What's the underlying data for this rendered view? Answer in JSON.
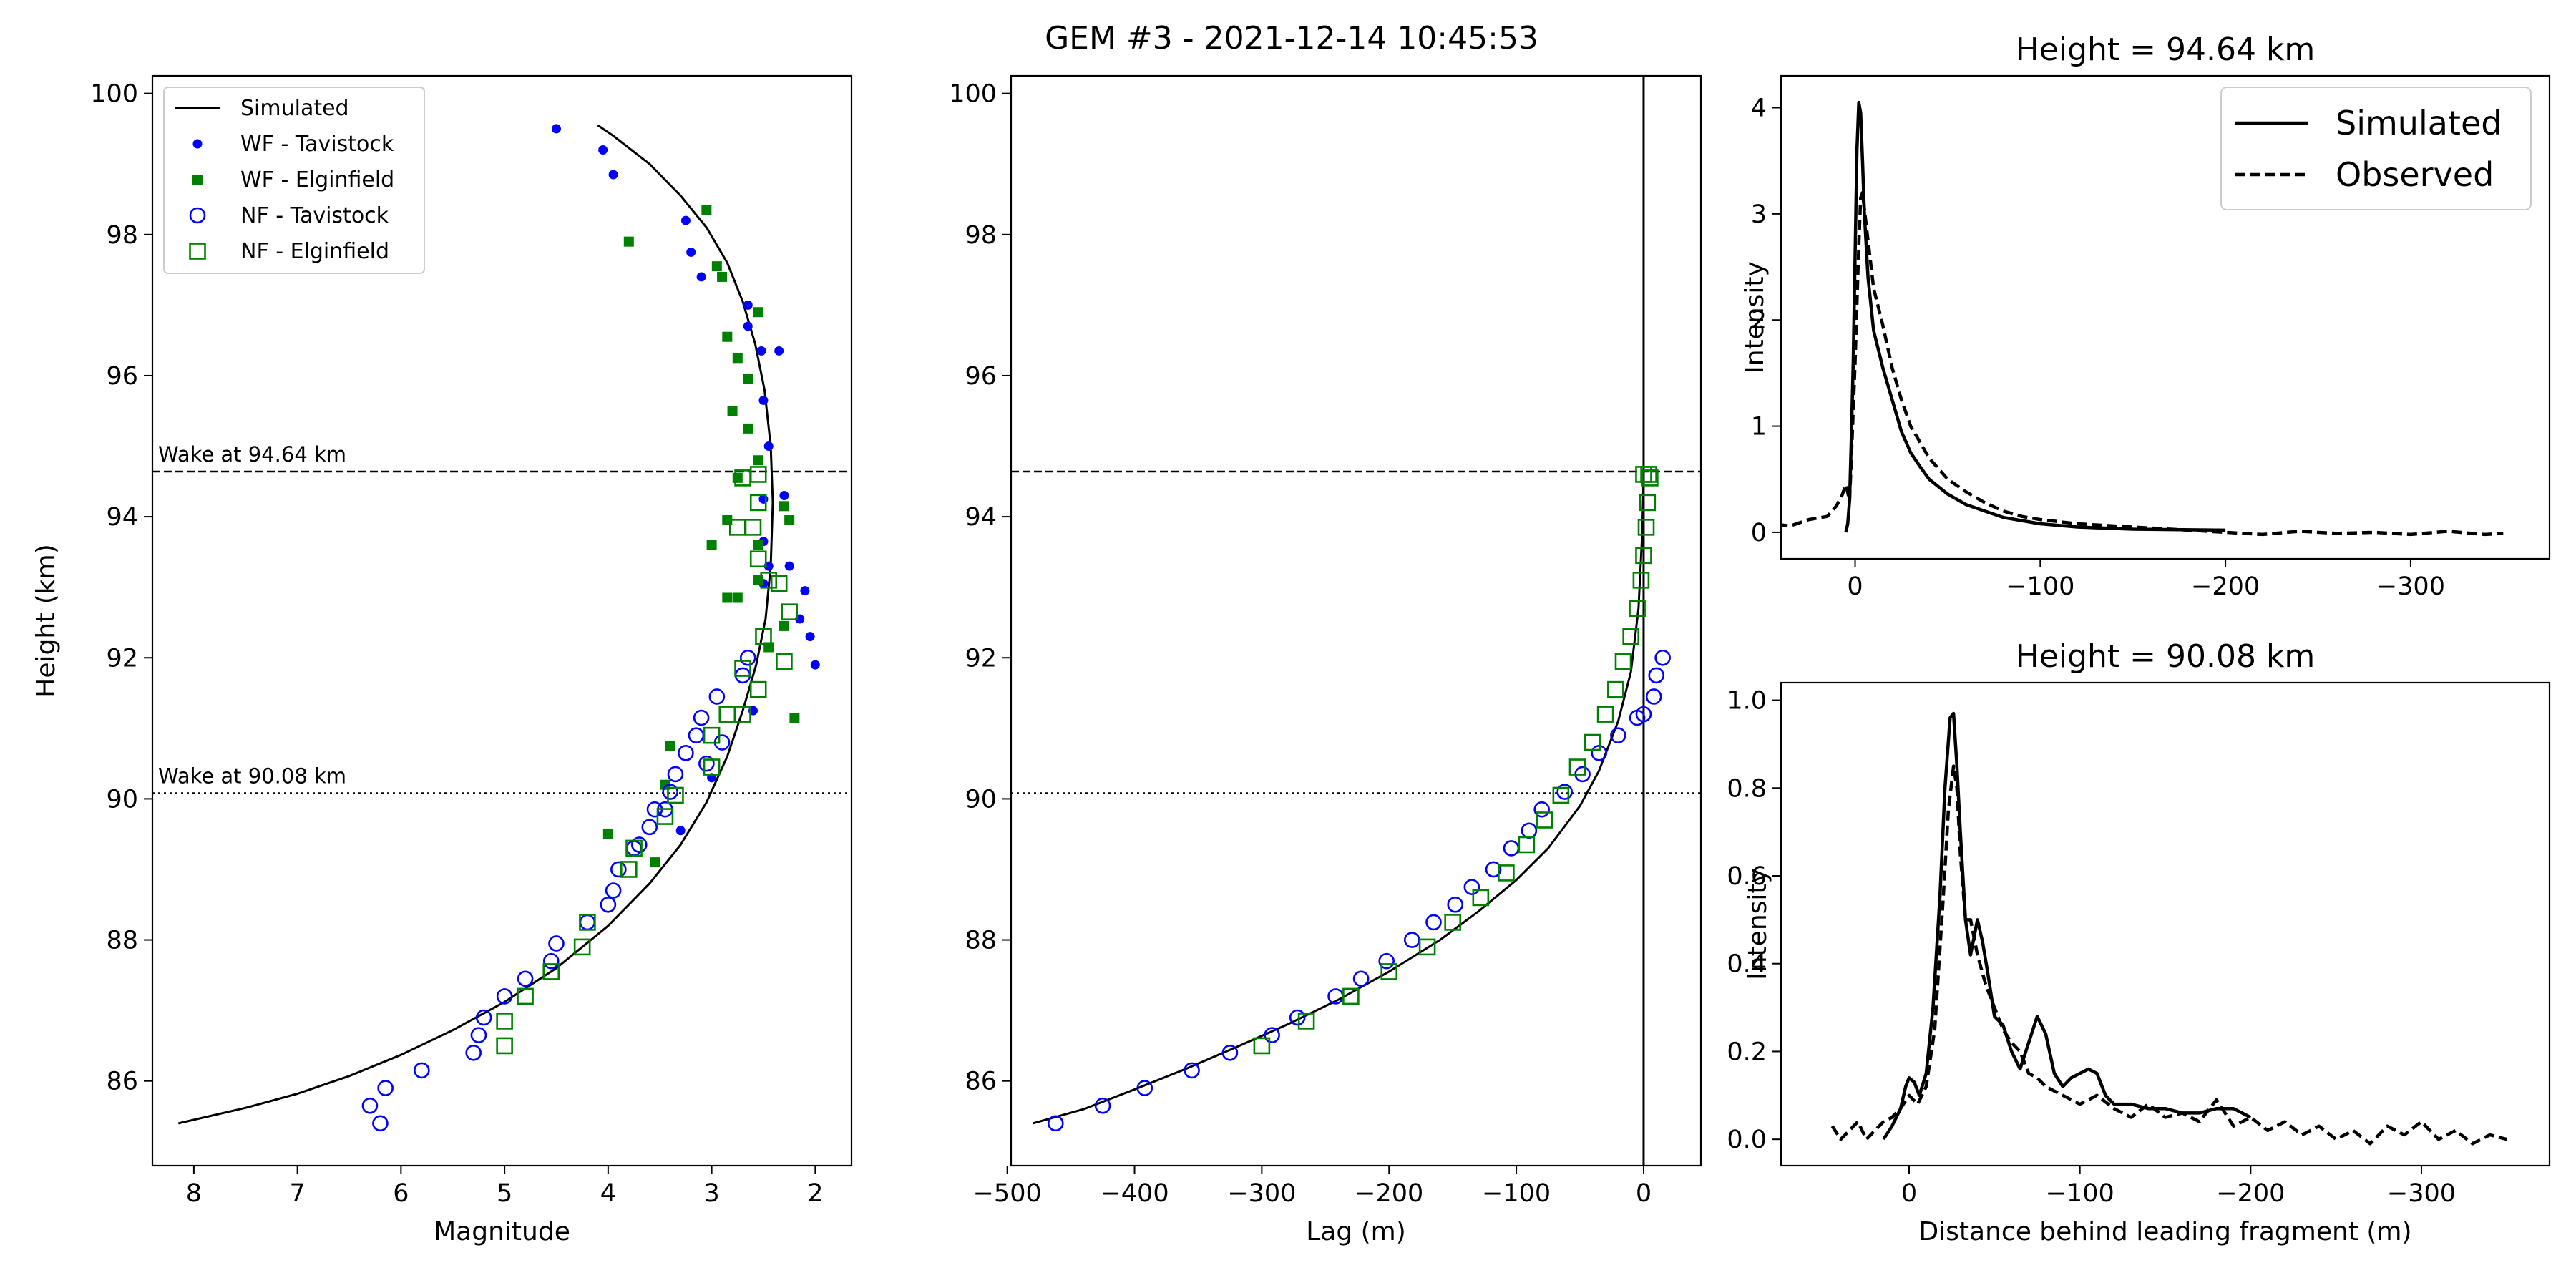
{
  "colors": {
    "blue": "#0000ff",
    "green": "#008000",
    "black": "#000000"
  },
  "figure_title": "GEM #3 - 2021-12-14 10:45:53",
  "chart_data": [
    {
      "id": "magnitude",
      "type": "scatter",
      "title": "",
      "xlabel": "Magnitude",
      "ylabel": "Height (km)",
      "xlim": [
        8.4,
        1.65
      ],
      "ylim": [
        84.8,
        100.25
      ],
      "x_inverted": true,
      "xticks": [
        8,
        7,
        6,
        5,
        4,
        3,
        2
      ],
      "yticks": [
        86,
        88,
        90,
        92,
        94,
        96,
        98,
        100
      ],
      "grid": false,
      "legend_position": "upper-left",
      "hlines": [
        {
          "y": 94.64,
          "style": "dashed",
          "label": "Wake at 94.64 km"
        },
        {
          "y": 90.08,
          "style": "dotted",
          "label": "Wake at 90.08 km"
        }
      ],
      "series": [
        {
          "name": "Simulated",
          "kind": "line",
          "color": "#000000",
          "x": [
            8.15,
            7.5,
            7.0,
            6.5,
            6.0,
            5.5,
            5.0,
            4.5,
            4.0,
            3.6,
            3.3,
            3.05,
            2.85,
            2.7,
            2.57,
            2.48,
            2.43,
            2.41,
            2.43,
            2.49,
            2.58,
            2.7,
            2.85,
            3.05,
            3.3,
            3.6,
            3.95,
            4.1
          ],
          "y": [
            85.4,
            85.62,
            85.82,
            86.07,
            86.37,
            86.72,
            87.12,
            87.6,
            88.2,
            88.8,
            89.35,
            89.95,
            90.6,
            91.25,
            91.9,
            92.55,
            93.3,
            94.2,
            95.0,
            95.8,
            96.45,
            97.05,
            97.6,
            98.1,
            98.55,
            99.0,
            99.4,
            99.55
          ]
        },
        {
          "name": "WF - Tavistock",
          "kind": "dot",
          "color": "#0000ff",
          "x": [
            4.5,
            4.05,
            3.95,
            3.25,
            3.2,
            3.1,
            2.65,
            2.65,
            2.52,
            2.35,
            2.5,
            2.45,
            2.3,
            2.5,
            2.25,
            2.25,
            2.5,
            2.5,
            2.45,
            2.1,
            2.15,
            2.05,
            2.0,
            2.6,
            3.0,
            3.3
          ],
          "y": [
            99.5,
            99.2,
            98.85,
            98.2,
            97.75,
            97.4,
            97.0,
            96.7,
            96.35,
            96.35,
            95.65,
            95.0,
            94.3,
            94.25,
            93.95,
            93.3,
            93.65,
            93.05,
            93.3,
            92.95,
            92.55,
            92.3,
            91.9,
            91.25,
            90.3,
            89.55
          ]
        },
        {
          "name": "WF - Elginfield",
          "kind": "square",
          "color": "#008000",
          "x": [
            3.8,
            3.05,
            2.95,
            2.9,
            2.55,
            2.85,
            2.75,
            2.65,
            2.8,
            2.65,
            2.55,
            2.75,
            2.85,
            2.3,
            2.25,
            2.55,
            2.55,
            2.3,
            2.75,
            2.45,
            2.2,
            3.0,
            2.85,
            3.4,
            3.45,
            4.0,
            3.55
          ],
          "y": [
            97.9,
            98.35,
            97.55,
            97.4,
            96.9,
            96.55,
            96.25,
            95.95,
            95.5,
            95.25,
            94.8,
            94.55,
            93.95,
            94.15,
            93.95,
            93.6,
            93.1,
            92.45,
            92.85,
            92.15,
            91.15,
            93.6,
            92.85,
            90.75,
            90.2,
            89.5,
            89.1
          ]
        },
        {
          "name": "NF - Tavistock",
          "kind": "circle",
          "color": "#0000ff",
          "x": [
            6.2,
            6.3,
            6.15,
            5.8,
            5.3,
            5.25,
            5.2,
            5.0,
            4.8,
            4.55,
            4.5,
            4.2,
            4.0,
            3.95,
            3.9,
            3.75,
            3.7,
            3.6,
            3.55,
            3.45,
            3.4,
            3.35,
            3.25,
            3.15,
            3.1,
            3.05,
            2.95,
            2.9,
            2.7,
            2.65
          ],
          "y": [
            85.4,
            85.65,
            85.9,
            86.15,
            86.4,
            86.65,
            86.9,
            87.2,
            87.45,
            87.7,
            87.95,
            88.25,
            88.5,
            88.7,
            89.0,
            89.3,
            89.35,
            89.6,
            89.85,
            89.85,
            90.1,
            90.35,
            90.65,
            90.9,
            91.15,
            90.5,
            91.45,
            90.8,
            91.75,
            92.0
          ]
        },
        {
          "name": "NF - Elginfield",
          "kind": "open-square",
          "color": "#008000",
          "x": [
            5.0,
            5.0,
            4.8,
            4.55,
            4.25,
            4.2,
            3.8,
            3.75,
            3.45,
            3.35,
            3.0,
            3.0,
            2.85,
            2.7,
            2.7,
            2.55,
            2.5,
            2.3,
            2.25,
            2.35,
            2.45,
            2.55,
            2.75,
            2.6,
            2.55,
            2.7,
            2.55
          ],
          "y": [
            86.5,
            86.85,
            87.2,
            87.55,
            87.9,
            88.25,
            89.0,
            89.3,
            89.75,
            90.05,
            90.45,
            90.9,
            91.2,
            91.2,
            91.85,
            91.55,
            92.3,
            91.95,
            92.65,
            93.05,
            93.1,
            93.4,
            93.85,
            93.85,
            94.2,
            94.55,
            94.6
          ]
        }
      ]
    },
    {
      "id": "lag",
      "type": "scatter",
      "title": "",
      "xlabel": "Lag (m)",
      "ylabel": "",
      "xlim": [
        -497,
        45
      ],
      "ylim": [
        84.8,
        100.25
      ],
      "xticks": [
        -500,
        -400,
        -300,
        -200,
        -100,
        0
      ],
      "xticklabels": [
        "−500",
        "−400",
        "−300",
        "−200",
        "−100",
        "0"
      ],
      "yticks": [
        86,
        88,
        90,
        92,
        94,
        96,
        98,
        100
      ],
      "grid": false,
      "vline": 0,
      "hlines": [
        {
          "y": 94.64,
          "style": "dashed"
        },
        {
          "y": 90.08,
          "style": "dotted"
        }
      ],
      "series": [
        {
          "name": "Simulated",
          "kind": "line",
          "color": "#000000",
          "x": [
            -480,
            -440,
            -400,
            -360,
            -320,
            -280,
            -240,
            -200,
            -160,
            -130,
            -100,
            -75,
            -50,
            -35,
            -20,
            -10,
            -4,
            -1,
            0
          ],
          "y": [
            85.4,
            85.6,
            85.88,
            86.17,
            86.48,
            86.8,
            87.15,
            87.55,
            88.0,
            88.4,
            88.85,
            89.3,
            89.9,
            90.4,
            91.1,
            91.8,
            92.7,
            93.8,
            94.6
          ]
        },
        {
          "name": "NF - Tavistock",
          "kind": "circle",
          "color": "#0000ff",
          "x": [
            -462,
            -425,
            -392,
            -355,
            -325,
            -292,
            -272,
            -242,
            -222,
            -202,
            -182,
            -165,
            -148,
            -135,
            -118,
            -104,
            -90,
            -80,
            -62,
            -48,
            -35,
            -20,
            -5,
            15,
            10,
            8,
            0
          ],
          "y": [
            85.4,
            85.65,
            85.9,
            86.15,
            86.4,
            86.65,
            86.9,
            87.2,
            87.45,
            87.7,
            88.0,
            88.25,
            88.5,
            88.75,
            89.0,
            89.3,
            89.55,
            89.85,
            90.1,
            90.35,
            90.65,
            90.9,
            91.15,
            92.0,
            91.75,
            91.45,
            91.2
          ]
        },
        {
          "name": "NF - Elginfield",
          "kind": "open-square",
          "color": "#008000",
          "x": [
            -300,
            -265,
            -230,
            -200,
            -170,
            -150,
            -128,
            -108,
            -92,
            -78,
            -65,
            -52,
            -40,
            -30,
            -22,
            -16,
            -10,
            -5,
            -2,
            0,
            2,
            3,
            5,
            4,
            0
          ],
          "y": [
            86.5,
            86.85,
            87.2,
            87.55,
            87.9,
            88.25,
            88.6,
            88.95,
            89.35,
            89.7,
            90.05,
            90.45,
            90.8,
            91.2,
            91.55,
            91.95,
            92.3,
            92.7,
            93.1,
            93.45,
            93.85,
            94.2,
            94.55,
            94.6,
            94.6
          ]
        }
      ]
    },
    {
      "id": "profile-top",
      "type": "line",
      "title": "Height = 94.64 km",
      "xlabel": "",
      "ylabel": "Intensity",
      "xlim": [
        40,
        -375
      ],
      "ylim": [
        -0.25,
        4.3
      ],
      "x_inverted": true,
      "xticks": [
        0,
        -100,
        -200,
        -300
      ],
      "xticklabels": [
        "0",
        "−100",
        "−200",
        "−300"
      ],
      "yticks": [
        0,
        1,
        2,
        3,
        4
      ],
      "legend_position": "upper-right",
      "series": [
        {
          "name": "Simulated",
          "style": "solid",
          "color": "#000000",
          "x": [
            5,
            4,
            3,
            2,
            1,
            0,
            -1,
            -2,
            -3,
            -4,
            -5,
            -7,
            -10,
            -15,
            -20,
            -25,
            -30,
            -35,
            -40,
            -50,
            -60,
            -70,
            -80,
            -100,
            -120,
            -150,
            -200
          ],
          "y": [
            0.0,
            0.08,
            0.3,
            0.9,
            1.6,
            2.6,
            3.6,
            4.05,
            3.95,
            3.5,
            3.0,
            2.4,
            1.9,
            1.55,
            1.25,
            0.95,
            0.75,
            0.62,
            0.5,
            0.36,
            0.26,
            0.2,
            0.14,
            0.08,
            0.05,
            0.03,
            0.02
          ]
        },
        {
          "name": "Observed",
          "style": "dashed",
          "color": "#000000",
          "x": [
            65,
            55,
            45,
            35,
            25,
            15,
            10,
            7,
            5,
            3,
            2,
            0,
            -2,
            -3,
            -4,
            -6,
            -8,
            -10,
            -15,
            -20,
            -25,
            -30,
            -35,
            -40,
            -50,
            -60,
            -70,
            -80,
            -90,
            -100,
            -120,
            -150,
            -180,
            -200,
            -220,
            -240,
            -260,
            -280,
            -300,
            -320,
            -340,
            -350
          ],
          "y": [
            0.03,
            0.0,
            0.08,
            0.06,
            0.12,
            0.15,
            0.25,
            0.35,
            0.45,
            0.3,
            0.7,
            1.6,
            2.7,
            3.15,
            3.2,
            2.9,
            2.6,
            2.3,
            1.95,
            1.55,
            1.25,
            1.0,
            0.85,
            0.7,
            0.5,
            0.38,
            0.28,
            0.2,
            0.15,
            0.12,
            0.08,
            0.05,
            0.02,
            0.0,
            -0.02,
            0.01,
            -0.01,
            0.0,
            -0.02,
            0.01,
            -0.02,
            -0.01
          ]
        }
      ]
    },
    {
      "id": "profile-bottom",
      "type": "line",
      "title": "Height = 90.08 km",
      "xlabel": "Distance behind leading fragment (m)",
      "ylabel": "Intensity",
      "xlim": [
        75,
        -375
      ],
      "ylim": [
        -0.06,
        1.04
      ],
      "x_inverted": true,
      "xticks": [
        0,
        -100,
        -200,
        -300
      ],
      "xticklabels": [
        "0",
        "−100",
        "−200",
        "−300"
      ],
      "yticks": [
        0.0,
        0.2,
        0.4,
        0.6,
        0.8,
        1.0
      ],
      "yticklabels": [
        "0.0",
        "0.2",
        "0.4",
        "0.6",
        "0.8",
        "1.0"
      ],
      "series": [
        {
          "name": "Simulated",
          "style": "solid",
          "color": "#000000",
          "x": [
            15,
            10,
            5,
            2,
            0,
            -3,
            -6,
            -10,
            -14,
            -18,
            -21,
            -24,
            -26,
            -28,
            -30,
            -33,
            -36,
            -40,
            -43,
            -46,
            -50,
            -55,
            -60,
            -65,
            -70,
            -75,
            -80,
            -85,
            -90,
            -95,
            -100,
            -105,
            -110,
            -115,
            -120,
            -130,
            -140,
            -150,
            -160,
            -170,
            -180,
            -190,
            -200
          ],
          "y": [
            0.0,
            0.03,
            0.07,
            0.12,
            0.14,
            0.13,
            0.1,
            0.15,
            0.3,
            0.55,
            0.8,
            0.96,
            0.97,
            0.85,
            0.7,
            0.5,
            0.42,
            0.5,
            0.45,
            0.38,
            0.28,
            0.26,
            0.2,
            0.16,
            0.22,
            0.28,
            0.24,
            0.15,
            0.12,
            0.14,
            0.15,
            0.16,
            0.15,
            0.1,
            0.08,
            0.08,
            0.07,
            0.07,
            0.06,
            0.06,
            0.07,
            0.07,
            0.05
          ]
        },
        {
          "name": "Observed",
          "style": "dashed",
          "color": "#000000",
          "x": [
            45,
            40,
            35,
            30,
            25,
            20,
            15,
            10,
            5,
            0,
            -5,
            -10,
            -15,
            -20,
            -23,
            -26,
            -28,
            -30,
            -33,
            -36,
            -40,
            -45,
            -50,
            -55,
            -60,
            -65,
            -70,
            -75,
            -80,
            -90,
            -100,
            -110,
            -120,
            -130,
            -140,
            -150,
            -160,
            -170,
            -180,
            -190,
            -200,
            -210,
            -220,
            -230,
            -240,
            -250,
            -260,
            -270,
            -280,
            -290,
            -300,
            -310,
            -320,
            -330,
            -340,
            -350
          ],
          "y": [
            0.03,
            0.0,
            0.02,
            0.04,
            0.0,
            0.02,
            0.04,
            0.05,
            0.07,
            0.1,
            0.08,
            0.12,
            0.25,
            0.55,
            0.75,
            0.85,
            0.8,
            0.65,
            0.5,
            0.5,
            0.42,
            0.35,
            0.3,
            0.25,
            0.22,
            0.2,
            0.15,
            0.14,
            0.12,
            0.1,
            0.08,
            0.1,
            0.07,
            0.05,
            0.08,
            0.05,
            0.06,
            0.04,
            0.09,
            0.03,
            0.05,
            0.02,
            0.04,
            0.01,
            0.03,
            0.0,
            0.02,
            -0.01,
            0.03,
            0.01,
            0.04,
            0.0,
            0.02,
            -0.01,
            0.01,
            0.0
          ]
        }
      ]
    }
  ]
}
